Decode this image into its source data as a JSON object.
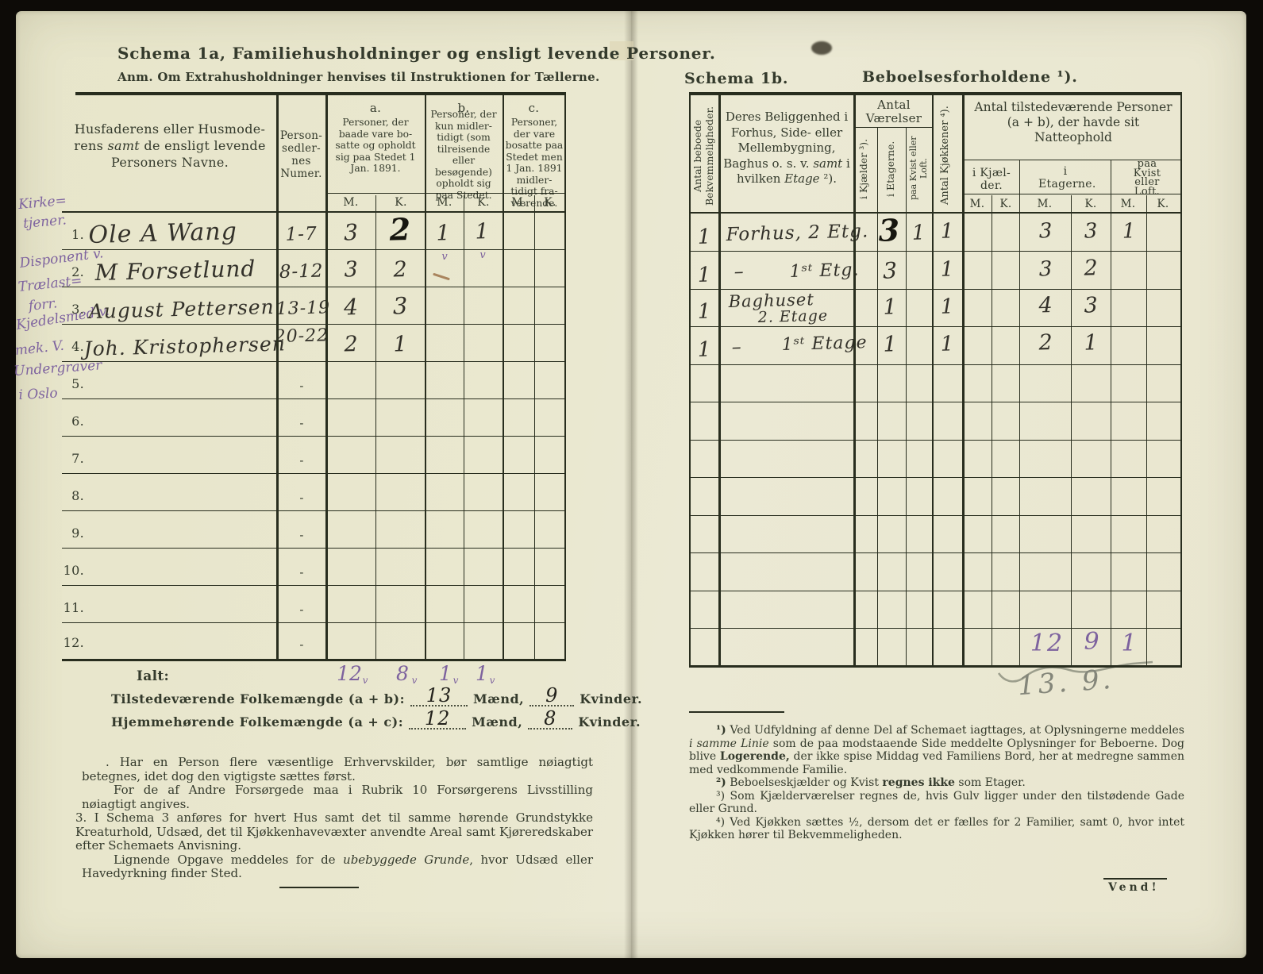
{
  "left": {
    "title": "Schema 1a,  Familiehusholdninger og ensligt levende Personer.",
    "subtitle": "Anm.  Om Extrahusholdninger henvises til Instruktionen for Tællerne.",
    "margin_notes": [
      "Kirke=",
      "tjener.",
      "Disponent v.",
      "Trælast=",
      "forr.",
      "Kjedelsmed v.",
      "mek. V.",
      "Undergraver",
      "i Oslo"
    ],
    "header": {
      "name_pre": "Husfaderens eller Husmode-rens ",
      "name_italic": "samt",
      "name_post": " de ensligt levende Personers Navne.",
      "numer": "Person- sedler- nes Numer.",
      "a_letter": "a.",
      "a_text": "Personer, der baade vare bo-satte og opholdt sig paa Stedet 1 Jan. 1891.",
      "b_letter": "b.",
      "b_text": "Personer, der kun midler-tidigt (som tilreisende eller besøgende) opholdt sig paa Stedet.",
      "c_letter": "c.",
      "c_text": "Personer, der vare bosatte paa Stedet men 1 Jan. 1891 midler-tidigt fra-værende.",
      "m": "M.",
      "k": "K."
    },
    "rows": [
      {
        "num": "1.",
        "name": "Ole A Wang",
        "numer": "1-7",
        "aM": "3",
        "aK": "2",
        "bM": "1",
        "bK": "1",
        "bM_tick": "v",
        "bK_tick": "v"
      },
      {
        "num": "2.",
        "name": "M Forsetlund",
        "numer": "8-12",
        "aM": "3",
        "aK": "2"
      },
      {
        "num": "3.",
        "name": "August Pettersen",
        "numer": "13-19",
        "aM": "4",
        "aK": "3"
      },
      {
        "num": "4.",
        "name": "Joh. Kristophersen",
        "numer": "20-22",
        "aM": "2",
        "aK": "1"
      },
      {
        "num": "5.",
        "numer": "-"
      },
      {
        "num": "6.",
        "numer": "-"
      },
      {
        "num": "7.",
        "numer": "-"
      },
      {
        "num": "8.",
        "numer": "-"
      },
      {
        "num": "9.",
        "numer": "-"
      },
      {
        "num": "10.",
        "numer": "-"
      },
      {
        "num": "11.",
        "numer": "-"
      },
      {
        "num": "12.",
        "numer": "-"
      }
    ],
    "ialt": {
      "label": "Ialt:",
      "values": [
        "12",
        "8",
        "1",
        "1"
      ],
      "tick": "v"
    },
    "summary": [
      {
        "label": "Tilstedeværende Folkemængde (a + b):",
        "maend": "13",
        "maend_label": "Mænd,",
        "kvinder": "9",
        "kvinder_label": "Kvinder."
      },
      {
        "label": "Hjemmehørende Folkemængde (a + c):",
        "maend": "12",
        "maend_label": "Mænd,",
        "kvinder": "8",
        "kvinder_label": "Kvinder."
      }
    ],
    "notes": {
      "p1": ". Har en Person flere væsentlige Erhvervskilder, bør samtlige nøiagtigt betegnes, idet dog den vigtigste sættes først.",
      "p2": "For de af Andre Forsørgede maa i Rubrik 10 Forsørgerens Livsstilling nøiagtigt angives.",
      "p3_num": "3.",
      "p3": "I Schema 3 anføres for hvert Hus samt det til samme hørende Grundstykke Kreaturhold, Udsæd, det til Kjøkkenhavevæxter anvendte Areal samt Kjøreredskaber efter Schemaets Anvisning.",
      "p4_pre": "Lignende Opgave meddeles for de ",
      "p4_italic": "ubebyggede Grunde",
      "p4_post": ", hvor Udsæd eller Havedyrkning finder Sted."
    }
  },
  "right": {
    "schema_label": "Schema 1b.",
    "title": "Beboelsesforholdene ¹).",
    "header": {
      "col_bekv": "Antal beboede Bekvemmeligheder.",
      "col_bel_pre": "Deres Beliggenhed i Forhus, Side- eller Mellembygning, Baghus o. s. v. ",
      "col_bel_italic": "samt",
      "col_bel_mid": " i hvilken ",
      "col_bel_italic2": "Etage",
      "col_bel_post": " ²).",
      "vaerelser_title": "Antal Værelser",
      "v_kjaelder": "i Kjælder ³).",
      "v_etagerne": "i Etagerne.",
      "v_kvist": "paa Kvist eller Loft.",
      "kjokkener": "Antal Kjøkkener ⁴).",
      "nat_title": "Antal tilstedeværende Personer (a + b), der havde sit Natteophold",
      "nat_kjaelder": "i Kjæl-der.",
      "nat_etagerne": "i Etagerne.",
      "nat_kvist": "paa Kvist eller Loft.",
      "m": "M.",
      "k": "K."
    },
    "rows": [
      {
        "bekv": "1",
        "bel": "Forhus, 2 Etg.",
        "etg": "3",
        "kvist": "1",
        "kjk": "1",
        "etgM": "3",
        "etgK": "3",
        "kvistM": "1"
      },
      {
        "bekv": "1",
        "bel_dash": "–",
        "bel": "1ˢᵗ Etg.",
        "etg": "3",
        "kjk": "1",
        "etgM": "3",
        "etgK": "2"
      },
      {
        "bekv": "1",
        "bel": "Baghuset",
        "bel2": "2. Etage",
        "etg": "1",
        "kjk": "1",
        "etgM": "4",
        "etgK": "3"
      },
      {
        "bekv": "1",
        "bel_dash": "–",
        "bel": "1ˢᵗ Etage",
        "etg": "1",
        "kjk": "1",
        "etgM": "2",
        "etgK": "1"
      }
    ],
    "totals": {
      "etgM": "12",
      "etgK": "9",
      "kvistM": "1"
    },
    "pencil_total": "13. 9.",
    "footnotes": {
      "f1_marker": "¹)",
      "f1_pre": " Ved Udfyldning af denne Del af Schemaet iagttages, at Oplysningerne meddeles ",
      "f1_italic": "i samme Linie",
      "f1_mid": " som de paa modstaaende Side meddelte Oplysninger for Beboerne. Dog blive ",
      "f1_bold": "Logerende,",
      "f1_post": " der ikke spise Middag ved Familiens Bord, her at medregne sammen med vedkommende Familie.",
      "f2_marker": "²)",
      "f2_pre": " Beboelseskjælder og Kvist ",
      "f2_bold": "regnes ikke",
      "f2_post": " som Etager.",
      "f3": "³) Som Kjælderværelser regnes de, hvis Gulv ligger under den tilstødende Gade eller Grund.",
      "f4": "⁴) Ved Kjøkken sættes ½, dersom det er fælles for 2 Familier, samt 0, hvor intet Kjøkken hører til Bekvemmeligheden."
    },
    "vend": "Vend!"
  }
}
